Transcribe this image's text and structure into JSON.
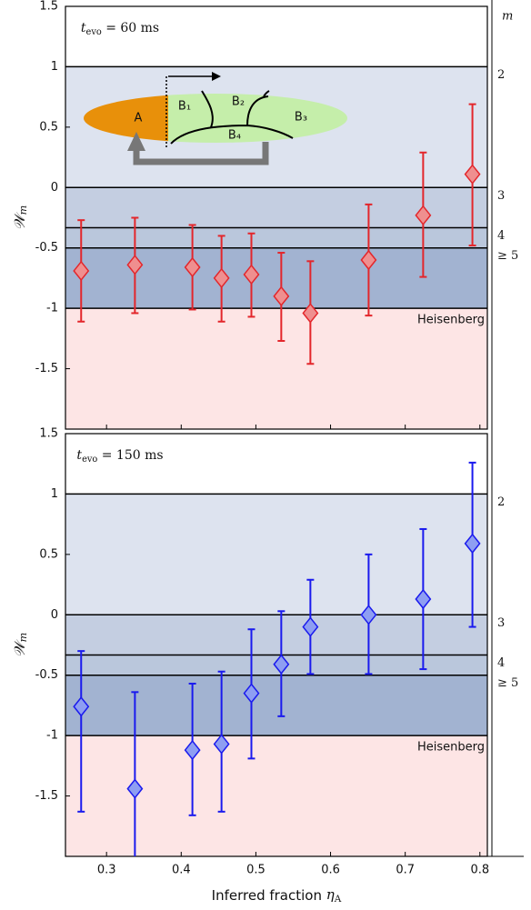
{
  "chart_data": [
    {
      "type": "scatter",
      "annotation": {
        "symbol": "t",
        "subscript": "evo",
        "text": " = 60 ms"
      },
      "ylabel": {
        "symbol": "𝒲",
        "subscript": "m"
      },
      "right_axis_title": "m",
      "inset_labels": [
        "A",
        "B₁",
        "B₂",
        "B₃",
        "B₄"
      ],
      "xlim": [
        0.245,
        0.81
      ],
      "xticks": [
        0.3,
        0.4,
        0.5,
        0.6,
        0.7,
        0.8
      ],
      "show_xtick_labels": false,
      "ylim": [
        -2,
        1.5
      ],
      "yticks": [
        1.5,
        1,
        0.5,
        0,
        -0.5,
        -1,
        -1.5
      ],
      "bands": [
        {
          "from": 1,
          "to": 1.5,
          "color": "#ffffff"
        },
        {
          "from": 0,
          "to": 1,
          "color": "#dde3ef",
          "label": "2"
        },
        {
          "from": -0.333,
          "to": 0,
          "color": "#c4cee1",
          "label": "3"
        },
        {
          "from": -0.5,
          "to": -0.333,
          "color": "#bac7dc",
          "label": "4"
        },
        {
          "from": -1,
          "to": -0.5,
          "color": "#a2b3d1",
          "label": "≥ 5"
        },
        {
          "from": -2,
          "to": -1,
          "color": "#fde5e5",
          "label": "Heisenberg",
          "label_inside": true
        }
      ],
      "color": "#e3262b",
      "marker_fill": "#ef8f8f",
      "x": [
        0.266,
        0.338,
        0.415,
        0.454,
        0.494,
        0.534,
        0.573,
        0.651,
        0.724,
        0.79
      ],
      "values": [
        -0.69,
        -0.64,
        -0.66,
        -0.75,
        -0.72,
        -0.9,
        -1.04,
        -0.6,
        -0.23,
        0.11
      ],
      "errors_minus": [
        0.42,
        0.4,
        0.35,
        0.36,
        0.35,
        0.37,
        0.42,
        0.46,
        0.51,
        0.59
      ],
      "errors_plus": [
        0.42,
        0.39,
        0.35,
        0.35,
        0.34,
        0.36,
        0.43,
        0.46,
        0.52,
        0.58
      ]
    },
    {
      "type": "scatter",
      "annotation": {
        "symbol": "t",
        "subscript": "evo",
        "text": " = 150 ms"
      },
      "ylabel": {
        "symbol": "𝒲",
        "subscript": "m"
      },
      "xlabel": {
        "text": "Inferred fraction ",
        "symbol": "η",
        "subscript": "A"
      },
      "xlim": [
        0.245,
        0.81
      ],
      "xticks": [
        0.3,
        0.4,
        0.5,
        0.6,
        0.7,
        0.8
      ],
      "show_xtick_labels": true,
      "ylim": [
        -2,
        1.5
      ],
      "yticks": [
        1.5,
        1,
        0.5,
        0,
        -0.5,
        -1,
        -1.5
      ],
      "bands": [
        {
          "from": 1,
          "to": 1.5,
          "color": "#ffffff"
        },
        {
          "from": 0,
          "to": 1,
          "color": "#dde3ef",
          "label": "2"
        },
        {
          "from": -0.333,
          "to": 0,
          "color": "#c4cee1",
          "label": "3"
        },
        {
          "from": -0.5,
          "to": -0.333,
          "color": "#bac7dc",
          "label": "4"
        },
        {
          "from": -1,
          "to": -0.5,
          "color": "#a2b3d1",
          "label": "≥ 5"
        },
        {
          "from": -2,
          "to": -1,
          "color": "#fde5e5",
          "label": "Heisenberg",
          "label_inside": true
        }
      ],
      "color": "#1a1aee",
      "marker_fill": "#8e9ef2",
      "x": [
        0.266,
        0.338,
        0.415,
        0.454,
        0.494,
        0.534,
        0.573,
        0.651,
        0.724,
        0.79
      ],
      "values": [
        -0.76,
        -1.44,
        -1.12,
        -1.07,
        -0.65,
        -0.41,
        -0.1,
        0.0,
        0.13,
        0.59
      ],
      "errors_minus": [
        0.87,
        0.6,
        0.54,
        0.56,
        0.54,
        0.43,
        0.39,
        0.49,
        0.58,
        0.69
      ],
      "errors_plus": [
        0.46,
        0.8,
        0.55,
        0.6,
        0.53,
        0.44,
        0.39,
        0.5,
        0.58,
        0.67
      ]
    }
  ]
}
